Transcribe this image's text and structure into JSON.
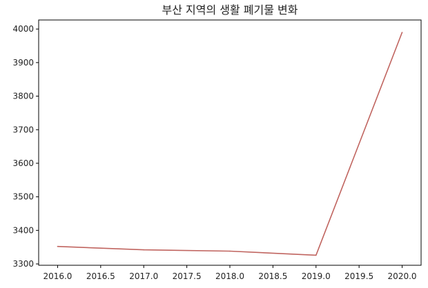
{
  "chart_data": {
    "type": "line",
    "title": "부산 지역의 생활 폐기물 변화",
    "xlabel": "",
    "ylabel": "",
    "x": [
      2016,
      2017,
      2018,
      2019,
      2020
    ],
    "series": [
      {
        "values": [
          3352,
          3342,
          3338,
          3326,
          3990
        ],
        "color": "#c0645f"
      }
    ],
    "xlim": [
      2015.78,
      2020.22
    ],
    "ylim": [
      3296,
      4027
    ],
    "xticks": [
      2016.0,
      2016.5,
      2017.0,
      2017.5,
      2018.0,
      2018.5,
      2019.0,
      2019.5,
      2020.0
    ],
    "xtick_labels": [
      "2016.0",
      "2016.5",
      "2017.0",
      "2017.5",
      "2018.0",
      "2018.5",
      "2019.0",
      "2019.5",
      "2020.0"
    ],
    "yticks": [
      3300,
      3400,
      3500,
      3600,
      3700,
      3800,
      3900,
      4000
    ],
    "ytick_labels": [
      "3300",
      "3400",
      "3500",
      "3600",
      "3700",
      "3800",
      "3900",
      "4000"
    ],
    "grid": false,
    "legend": "none"
  }
}
